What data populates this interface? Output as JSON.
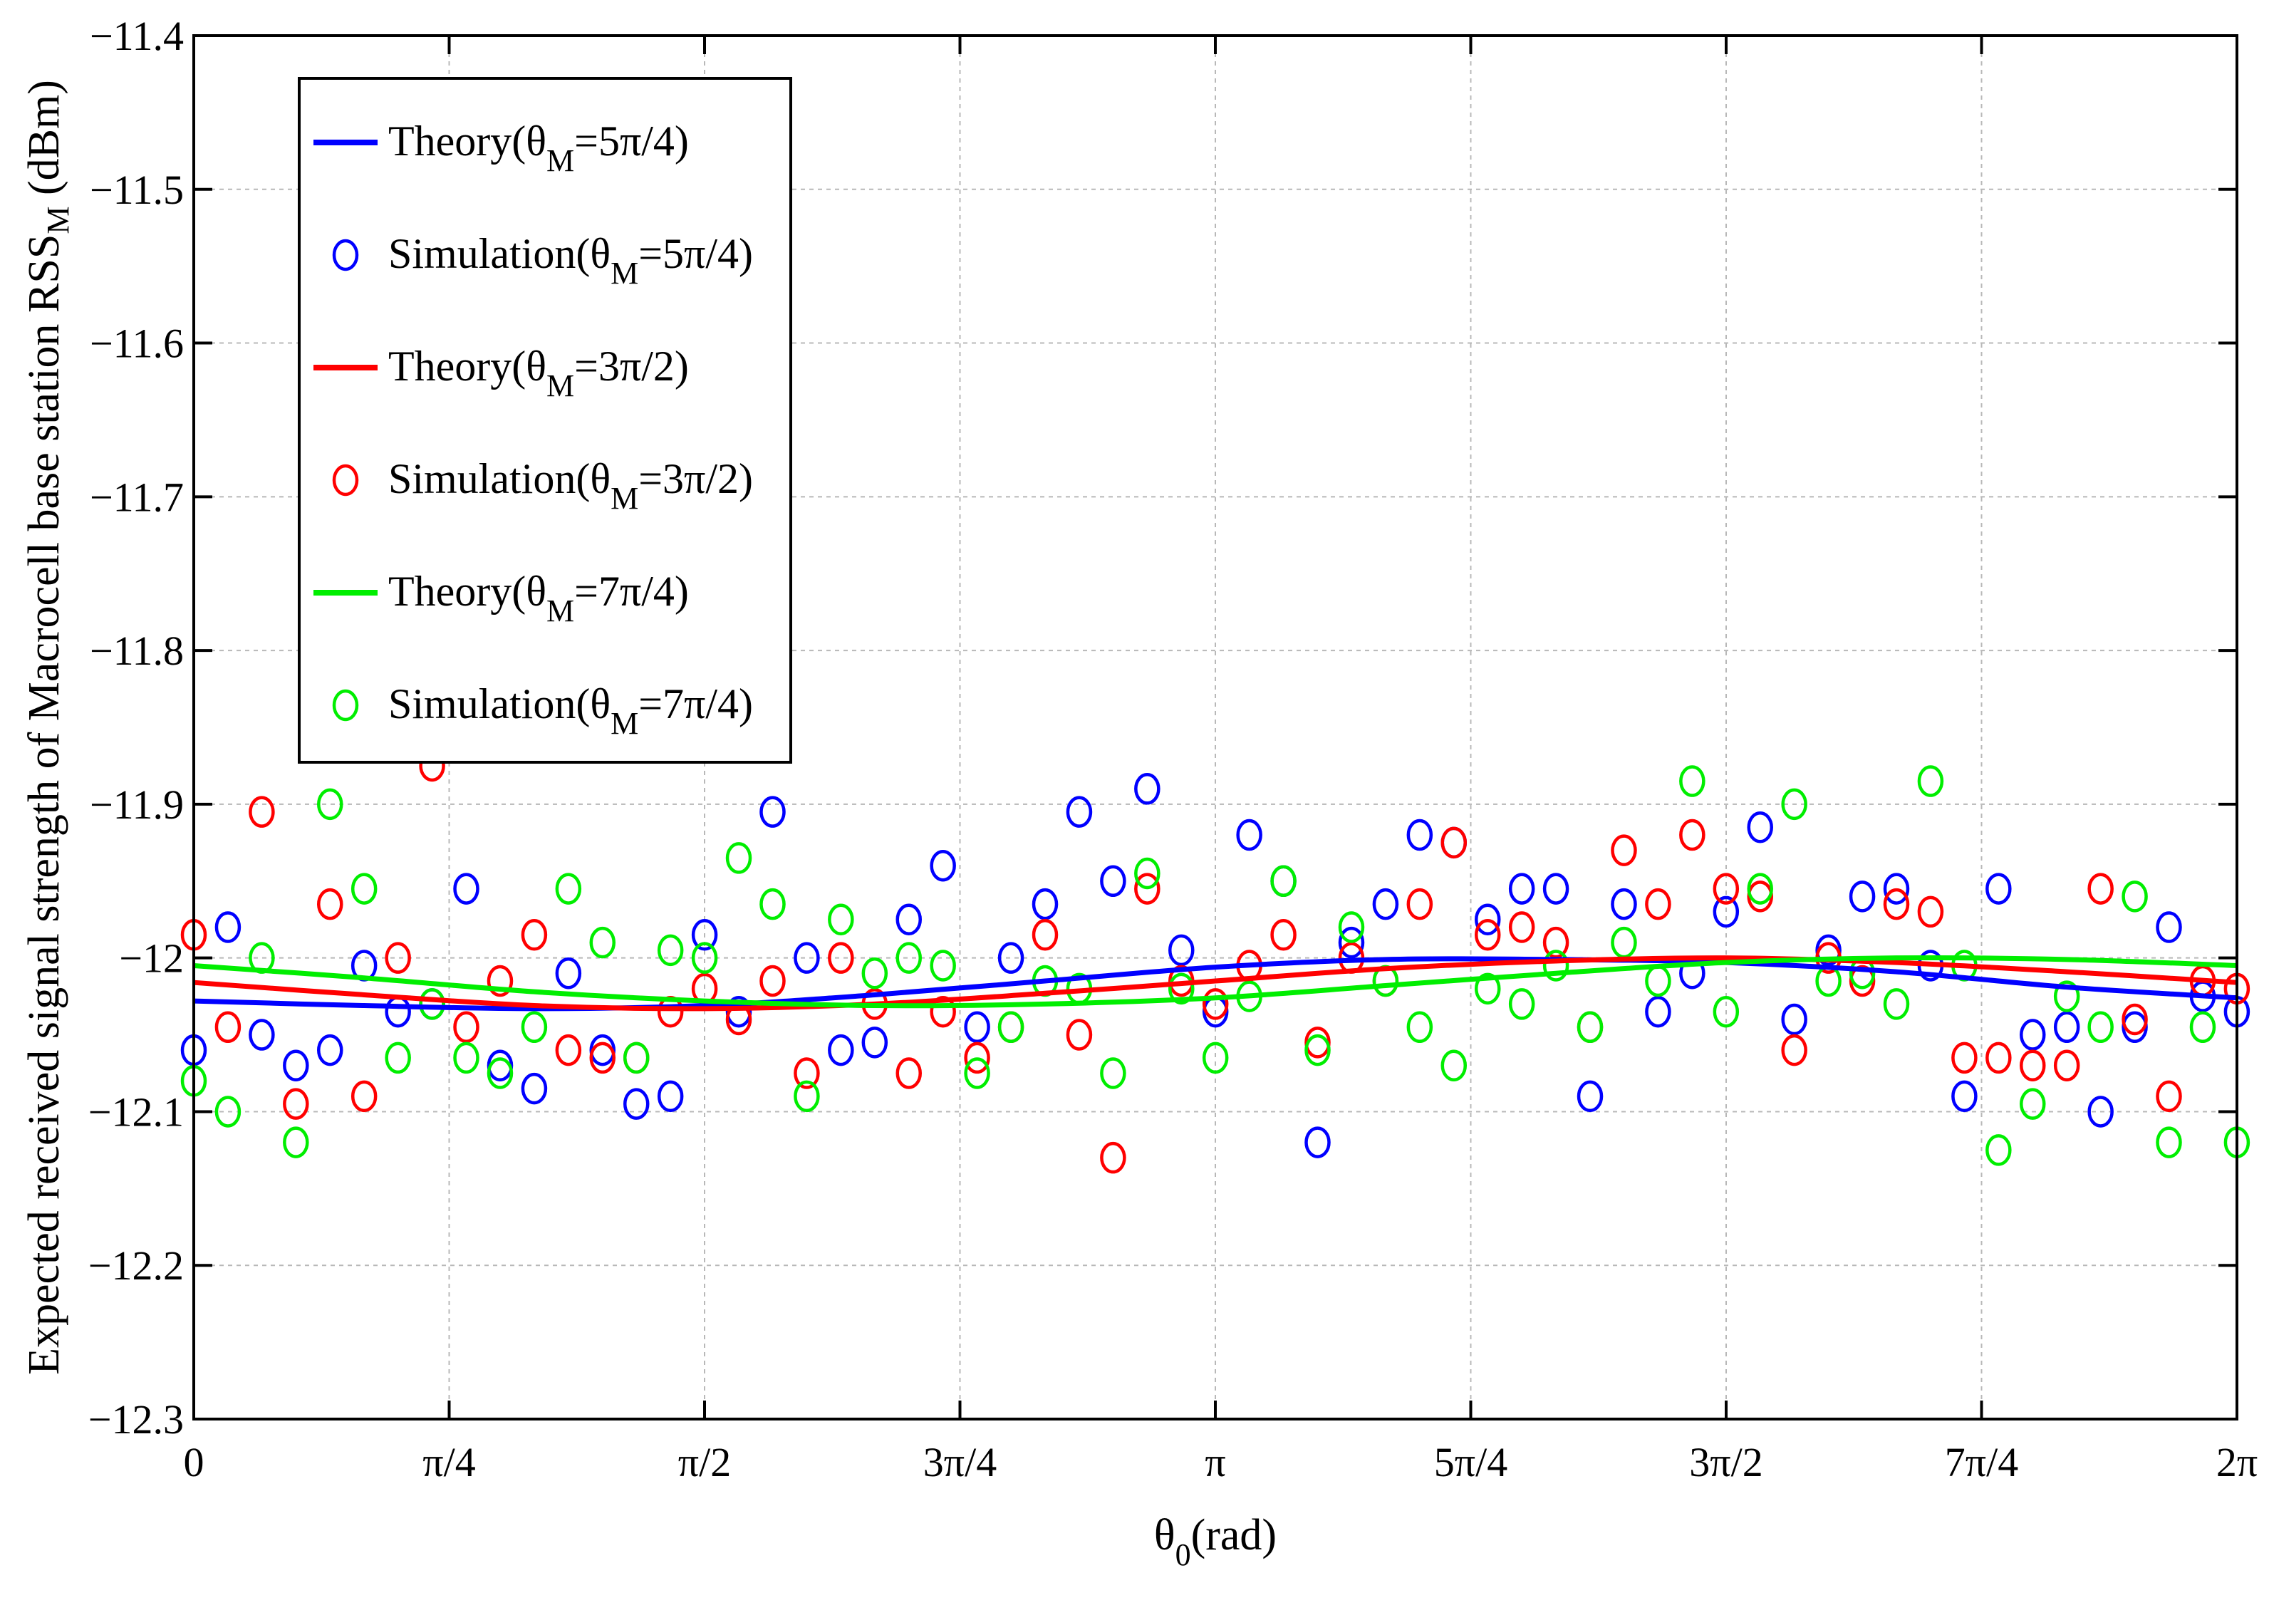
{
  "chart_data": {
    "type": "line+scatter",
    "xlabel": "θ0(rad)",
    "xlabel_main": "θ",
    "xlabel_sub": "0",
    "xlabel_unit": "(rad)",
    "ylabel": "Expected received signal strength of Macrocell base station RSSM (dBm)",
    "ylabel_main": "Expected received signal strength of Macrocell base station RSS",
    "ylabel_sub": "M",
    "ylabel_unit": " (dBm)",
    "xlim": [
      0,
      6.2832
    ],
    "ylim": [
      -12.3,
      -11.4
    ],
    "grid": true,
    "legend_position": "top-left",
    "xticks": [
      {
        "value": 0,
        "label": "0"
      },
      {
        "value": 0.7854,
        "label": "π/4"
      },
      {
        "value": 1.5708,
        "label": "π/2"
      },
      {
        "value": 2.3562,
        "label": "3π/4"
      },
      {
        "value": 3.1416,
        "label": "π"
      },
      {
        "value": 3.927,
        "label": "5π/4"
      },
      {
        "value": 4.7124,
        "label": "3π/2"
      },
      {
        "value": 5.4978,
        "label": "7π/4"
      },
      {
        "value": 6.2832,
        "label": "2π"
      }
    ],
    "yticks": [
      {
        "value": -11.4,
        "label": "−11.4"
      },
      {
        "value": -11.5,
        "label": "−11.5"
      },
      {
        "value": -11.6,
        "label": "−11.6"
      },
      {
        "value": -11.7,
        "label": "−11.7"
      },
      {
        "value": -11.8,
        "label": "−11.8"
      },
      {
        "value": -11.9,
        "label": "−11.9"
      },
      {
        "value": -12.0,
        "label": "−12"
      },
      {
        "value": -12.1,
        "label": "−12.1"
      },
      {
        "value": -12.2,
        "label": "−12.2"
      },
      {
        "value": -12.3,
        "label": "−12.3"
      }
    ],
    "series": [
      {
        "name": "Theory(θM=5π/4)",
        "label_pre": "Theory(θ",
        "label_sub": "M",
        "label_post": "=5π/4)",
        "kind": "line",
        "color": "#0000ff",
        "x": [
          0,
          0.524,
          1.047,
          1.571,
          2.094,
          2.618,
          3.142,
          3.665,
          4.189,
          4.712,
          5.236,
          5.76,
          6.283
        ],
        "y": [
          -12.028,
          -12.031,
          -12.033,
          -12.031,
          -12.024,
          -12.015,
          -12.006,
          -12.001,
          -12.001,
          -12.003,
          -12.009,
          -12.019,
          -12.026
        ]
      },
      {
        "name": "Simulation(θM=5π/4)",
        "label_pre": "Simulation(θ",
        "label_sub": "M",
        "label_post": "=5π/4)",
        "kind": "scatter",
        "color": "#0000ff",
        "x": [
          0,
          0.105,
          0.209,
          0.314,
          0.419,
          0.524,
          0.628,
          0.733,
          0.838,
          0.942,
          1.047,
          1.152,
          1.257,
          1.361,
          1.466,
          1.571,
          1.676,
          1.78,
          1.885,
          1.99,
          2.094,
          2.199,
          2.304,
          2.409,
          2.513,
          2.618,
          2.723,
          2.827,
          2.932,
          3.037,
          3.142,
          3.246,
          3.351,
          3.456,
          3.56,
          3.665,
          3.77,
          3.875,
          3.979,
          4.084,
          4.189,
          4.294,
          4.398,
          4.503,
          4.608,
          4.712,
          4.817,
          4.922,
          5.027,
          5.131,
          5.236,
          5.341,
          5.445,
          5.55,
          5.655,
          5.76,
          5.864,
          5.969,
          6.074,
          6.178,
          6.283
        ],
        "y": [
          -12.06,
          -11.98,
          -12.05,
          -12.07,
          -12.06,
          -12.005,
          -12.035,
          -12.03,
          -11.955,
          -12.07,
          -12.085,
          -12.01,
          -12.06,
          -12.095,
          -12.09,
          -11.985,
          -12.035,
          -11.905,
          -12.0,
          -12.06,
          -12.055,
          -11.975,
          -11.94,
          -12.045,
          -12.0,
          -11.965,
          -11.905,
          -11.95,
          -11.89,
          -11.995,
          -12.035,
          -11.92,
          -11.95,
          -12.12,
          -11.99,
          -11.965,
          -11.92,
          -11.925,
          -11.975,
          -11.955,
          -11.955,
          -12.09,
          -11.965,
          -12.035,
          -12.01,
          -11.97,
          -11.915,
          -12.04,
          -11.995,
          -11.96,
          -11.955,
          -12.005,
          -12.09,
          -11.955,
          -12.05,
          -12.045,
          -12.1,
          -12.045,
          -11.98,
          -12.025,
          -12.035
        ]
      },
      {
        "name": "Theory(θM=3π/2)",
        "label_pre": "Theory(θ",
        "label_sub": "M",
        "label_post": "=3π/2)",
        "kind": "line",
        "color": "#ff0000",
        "x": [
          0,
          0.524,
          1.047,
          1.571,
          2.094,
          2.618,
          3.142,
          3.665,
          4.189,
          4.712,
          5.236,
          5.76,
          6.283
        ],
        "y": [
          -12.016,
          -12.024,
          -12.031,
          -12.033,
          -12.03,
          -12.023,
          -12.015,
          -12.007,
          -12.002,
          -12.0,
          -12.003,
          -12.009,
          -12.016
        ]
      },
      {
        "name": "Simulation(θM=3π/2)",
        "label_pre": "Simulation(θ",
        "label_sub": "M",
        "label_post": "=3π/2)",
        "kind": "scatter",
        "color": "#ff0000",
        "x": [
          0,
          0.105,
          0.209,
          0.314,
          0.419,
          0.524,
          0.628,
          0.733,
          0.838,
          0.942,
          1.047,
          1.152,
          1.257,
          1.361,
          1.466,
          1.571,
          1.676,
          1.78,
          1.885,
          1.99,
          2.094,
          2.199,
          2.304,
          2.409,
          2.513,
          2.618,
          2.723,
          2.827,
          2.932,
          3.037,
          3.142,
          3.246,
          3.351,
          3.456,
          3.56,
          3.665,
          3.77,
          3.875,
          3.979,
          4.084,
          4.189,
          4.294,
          4.398,
          4.503,
          4.608,
          4.712,
          4.817,
          4.922,
          5.027,
          5.131,
          5.236,
          5.341,
          5.445,
          5.55,
          5.655,
          5.76,
          5.864,
          5.969,
          6.074,
          6.178,
          6.283
        ],
        "y": [
          -11.985,
          -12.045,
          -11.905,
          -12.095,
          -11.965,
          -12.09,
          -12.0,
          -11.875,
          -12.045,
          -12.015,
          -11.985,
          -12.06,
          -12.065,
          -12.065,
          -12.035,
          -12.02,
          -12.04,
          -12.015,
          -12.075,
          -12.0,
          -12.03,
          -12.075,
          -12.035,
          -12.065,
          -12.045,
          -11.985,
          -12.05,
          -12.13,
          -11.955,
          -12.015,
          -12.03,
          -12.005,
          -11.985,
          -12.055,
          -12.0,
          -12.015,
          -11.965,
          -11.925,
          -11.985,
          -11.98,
          -11.99,
          -12.045,
          -11.93,
          -11.965,
          -11.92,
          -11.955,
          -11.96,
          -12.06,
          -12.0,
          -12.015,
          -11.965,
          -11.97,
          -12.065,
          -12.065,
          -12.07,
          -12.07,
          -11.955,
          -12.04,
          -12.09,
          -12.015,
          -12.02
        ]
      },
      {
        "name": "Theory(θM=7π/4)",
        "label_pre": "Theory(θ",
        "label_sub": "M",
        "label_post": "=7π/4)",
        "kind": "line",
        "color": "#00ee00",
        "x": [
          0,
          0.524,
          1.047,
          1.571,
          2.094,
          2.618,
          3.142,
          3.665,
          4.189,
          4.712,
          5.236,
          5.76,
          6.283
        ],
        "y": [
          -12.005,
          -12.013,
          -12.022,
          -12.028,
          -12.031,
          -12.03,
          -12.026,
          -12.018,
          -12.01,
          -12.003,
          -12.0,
          -12.001,
          -12.005
        ]
      },
      {
        "name": "Simulation(θM=7π/4)",
        "label_pre": "Simulation(θ",
        "label_sub": "M",
        "label_post": "=7π/4)",
        "kind": "scatter",
        "color": "#00ee00",
        "x": [
          0,
          0.105,
          0.209,
          0.314,
          0.419,
          0.524,
          0.628,
          0.733,
          0.838,
          0.942,
          1.047,
          1.152,
          1.257,
          1.361,
          1.466,
          1.571,
          1.676,
          1.78,
          1.885,
          1.99,
          2.094,
          2.199,
          2.304,
          2.409,
          2.513,
          2.618,
          2.723,
          2.827,
          2.932,
          3.037,
          3.142,
          3.246,
          3.351,
          3.456,
          3.56,
          3.665,
          3.77,
          3.875,
          3.979,
          4.084,
          4.189,
          4.294,
          4.398,
          4.503,
          4.608,
          4.712,
          4.817,
          4.922,
          5.027,
          5.131,
          5.236,
          5.341,
          5.445,
          5.55,
          5.655,
          5.76,
          5.864,
          5.969,
          6.074,
          6.178,
          6.283
        ],
        "y": [
          -12.08,
          -12.1,
          -12.0,
          -12.12,
          -11.9,
          -11.955,
          -12.065,
          -12.03,
          -12.065,
          -12.075,
          -12.045,
          -11.955,
          -11.99,
          -12.065,
          -11.995,
          -12.0,
          -11.935,
          -11.965,
          -12.09,
          -11.975,
          -12.01,
          -12.0,
          -12.005,
          -12.075,
          -12.045,
          -12.015,
          -12.02,
          -12.075,
          -11.945,
          -12.02,
          -12.065,
          -12.025,
          -11.95,
          -12.06,
          -11.98,
          -12.015,
          -12.045,
          -12.07,
          -12.02,
          -12.03,
          -12.005,
          -12.045,
          -11.99,
          -12.015,
          -11.885,
          -12.035,
          -11.955,
          -11.9,
          -12.015,
          -12.01,
          -12.03,
          -11.885,
          -12.005,
          -12.125,
          -12.095,
          -12.025,
          -12.045,
          -11.96,
          -12.12,
          -12.045,
          -12.12
        ]
      }
    ]
  }
}
